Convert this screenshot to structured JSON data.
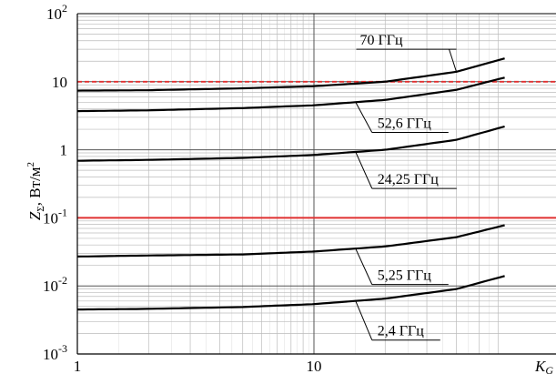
{
  "chart_data": {
    "type": "line",
    "x_scale": "log",
    "y_scale": "log",
    "xlim": [
      1,
      64
    ],
    "ylim": [
      0.001,
      100
    ],
    "grid": true,
    "x_ticks": [
      "1",
      "10"
    ],
    "x_axis_label": "K_G",
    "x_axis_label_main": "K",
    "x_axis_label_sub": "G",
    "y_ticks": [
      {
        "value": 100,
        "base": "10",
        "exp": "2"
      },
      {
        "value": 10,
        "base": "10",
        "exp": ""
      },
      {
        "value": 1,
        "base": "1",
        "exp": ""
      },
      {
        "value": 0.1,
        "base": "10",
        "exp": "-1"
      },
      {
        "value": 0.01,
        "base": "10",
        "exp": "-2"
      },
      {
        "value": 0.001,
        "base": "10",
        "exp": "-3"
      }
    ],
    "y_axis_label": "ZΣ, Вт/м2",
    "y_axis_label_parts": {
      "z": "Z",
      "sub": "Σ",
      "unit": ", Вт/м",
      "sup": "2"
    },
    "reference_lines": [
      {
        "y": 10,
        "style": "dashed",
        "color": "#e03030"
      },
      {
        "y": 0.1,
        "style": "solid",
        "color": "#e03030"
      }
    ],
    "series": [
      {
        "name": "70 ГГц",
        "x": [
          1,
          2,
          5,
          10,
          20,
          40,
          64
        ],
        "y": [
          7.4,
          7.5,
          8.0,
          8.6,
          10.0,
          14.0,
          22.0
        ]
      },
      {
        "name": "52,6 ГГц",
        "x": [
          1,
          2,
          5,
          10,
          20,
          40,
          64
        ],
        "y": [
          3.7,
          3.8,
          4.1,
          4.5,
          5.4,
          7.6,
          11.5
        ]
      },
      {
        "name": "24,25 ГГц",
        "x": [
          1,
          2,
          5,
          10,
          20,
          40,
          64
        ],
        "y": [
          0.69,
          0.71,
          0.76,
          0.84,
          1.0,
          1.4,
          2.2
        ]
      },
      {
        "name": "5,25 ГГц",
        "x": [
          1,
          2,
          5,
          10,
          20,
          40,
          64
        ],
        "y": [
          0.027,
          0.028,
          0.029,
          0.032,
          0.038,
          0.052,
          0.078
        ]
      },
      {
        "name": "2,4 ГГц",
        "x": [
          1,
          2,
          5,
          10,
          20,
          40,
          64
        ],
        "y": [
          0.0045,
          0.0046,
          0.0049,
          0.0054,
          0.0065,
          0.009,
          0.014
        ]
      }
    ],
    "annotations": [
      {
        "series": "70 ГГц",
        "anchor_x": 40,
        "label_y": 30
      },
      {
        "series": "52,6 ГГц",
        "anchor_x": 15,
        "label_y": 1.8
      },
      {
        "series": "24,25 ГГц",
        "anchor_x": 15,
        "label_y": 0.27
      },
      {
        "series": "5,25 ГГц",
        "anchor_x": 15,
        "label_y": 0.0105
      },
      {
        "series": "2,4 ГГц",
        "anchor_x": 15,
        "label_y": 0.0016
      }
    ],
    "colors": {
      "series": "#000000",
      "reference": "#e03030",
      "grid_major": "#555555",
      "grid_minor": "#bbbbbb"
    }
  }
}
